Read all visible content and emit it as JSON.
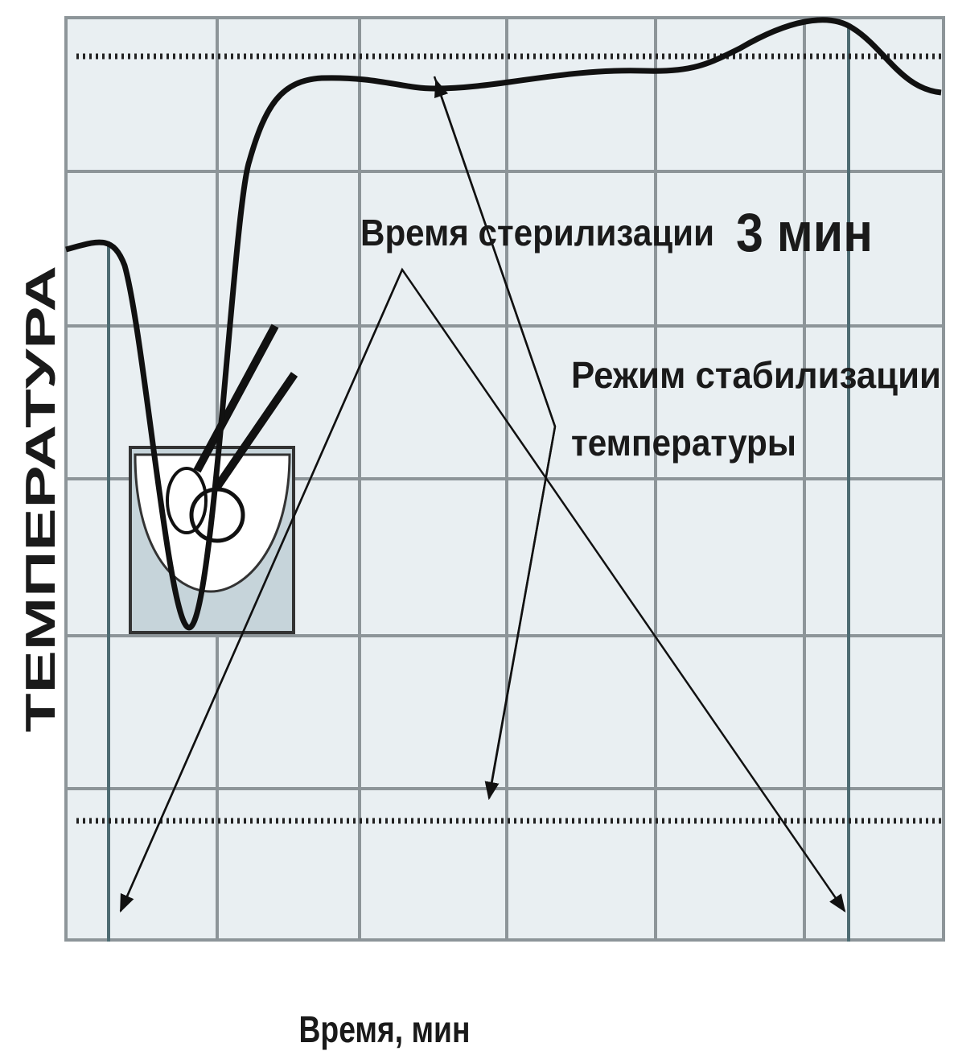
{
  "axes": {
    "y_label": "ТЕМПЕРАТУРА",
    "x_label": "Время, мин"
  },
  "annotations": [
    {
      "text": "Время стерилизации",
      "emphasis": "3 мин"
    },
    {
      "lines": [
        "Режим стабилизации",
        "температуры"
      ]
    }
  ]
}
